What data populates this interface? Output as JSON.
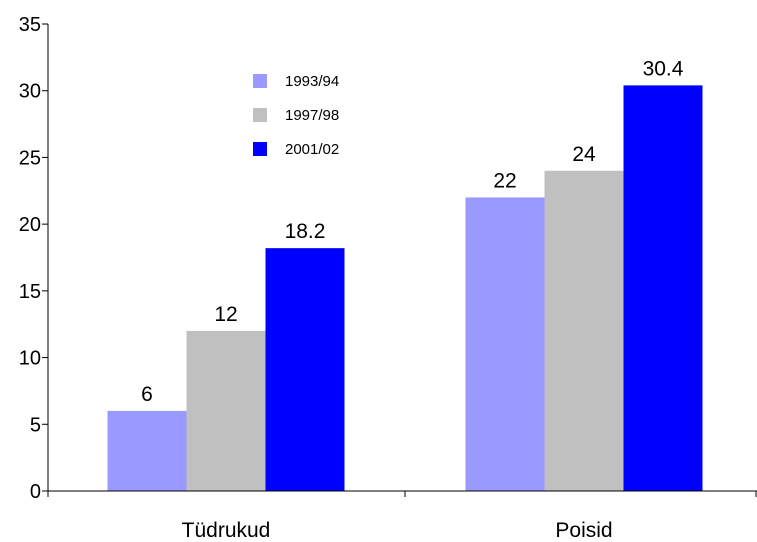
{
  "chart_data": {
    "type": "bar",
    "categories": [
      "Tüdrukud",
      "Poisid"
    ],
    "series": [
      {
        "name": "1993/94",
        "color": "#9999ff",
        "values": [
          6,
          22
        ],
        "labels": [
          "6",
          "22"
        ]
      },
      {
        "name": "1997/98",
        "color": "#c0c0c0",
        "values": [
          12,
          24
        ],
        "labels": [
          "12",
          "24"
        ]
      },
      {
        "name": "2001/02",
        "color": "#0000ff",
        "values": [
          18.2,
          30.4
        ],
        "labels": [
          "18.2",
          "30.4"
        ]
      }
    ],
    "title": "",
    "xlabel": "",
    "ylabel": "",
    "ylim": [
      0,
      35
    ],
    "yticks": [
      "0",
      "5",
      "10",
      "15",
      "20",
      "25",
      "30",
      "35"
    ],
    "grid": false,
    "legend_position": "top-center"
  }
}
